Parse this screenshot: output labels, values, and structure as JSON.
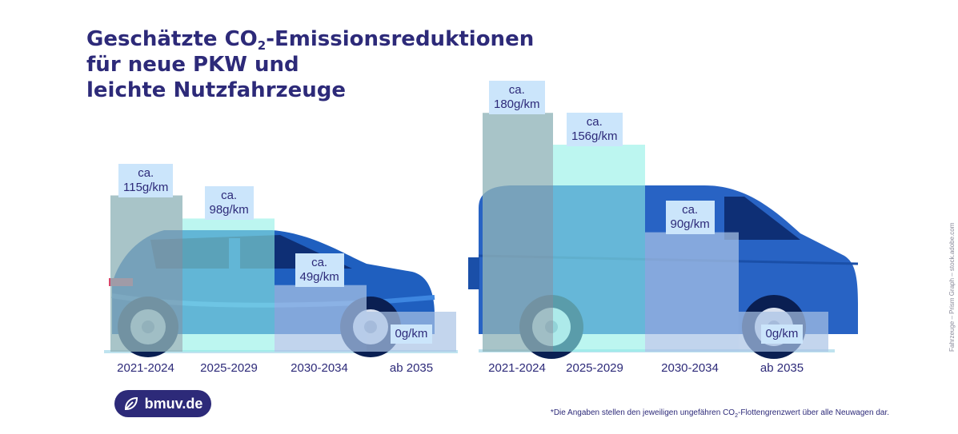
{
  "title": {
    "line1_part1": "Geschätzte CO",
    "line1_sub": "2",
    "line1_part2": "-Emissionsreduktionen",
    "line2": "für neue PKW und",
    "line3": "leichte Nutzfahrzeuge"
  },
  "chart_data": [
    {
      "type": "bar",
      "vehicle": "PKW",
      "categories": [
        "2021-2024",
        "2025-2029",
        "2030-2034",
        "ab 2035"
      ],
      "values": [
        115,
        98,
        49,
        0
      ],
      "labels": [
        {
          "prefix": "ca.",
          "value": "115g/km"
        },
        {
          "prefix": "ca.",
          "value": "98g/km"
        },
        {
          "prefix": "ca.",
          "value": "49g/km"
        },
        {
          "prefix": "",
          "value": "0g/km"
        }
      ],
      "unit": "g/km"
    },
    {
      "type": "bar",
      "vehicle": "leichte Nutzfahrzeuge",
      "categories": [
        "2021-2024",
        "2025-2029",
        "2030-2034",
        "ab 2035"
      ],
      "values": [
        180,
        156,
        90,
        0
      ],
      "labels": [
        {
          "prefix": "ca.",
          "value": "180g/km"
        },
        {
          "prefix": "ca.",
          "value": "156g/km"
        },
        {
          "prefix": "ca.",
          "value": "90g/km"
        },
        {
          "prefix": "",
          "value": "0g/km"
        }
      ],
      "unit": "g/km"
    }
  ],
  "colors": {
    "title": "#2d2a79",
    "bar1": "#8fb3b8",
    "bar2": "#8ff0e6",
    "bar3": "#a9c3e6",
    "label_bg": "#cbe5fb",
    "car_body": "#1f5fbf",
    "van_body": "#2863c4"
  },
  "badge": {
    "text": "bmuv.de",
    "icon": "leaf-icon"
  },
  "footnote": {
    "part1": "*Die Angaben stellen den jeweiligen ungefähren CO",
    "sub": "2",
    "part2": "-Flottengrenzwert über alle Neuwagen dar."
  },
  "credit": "Fahrzeuge – Prism Graph – stock.adobe.com"
}
